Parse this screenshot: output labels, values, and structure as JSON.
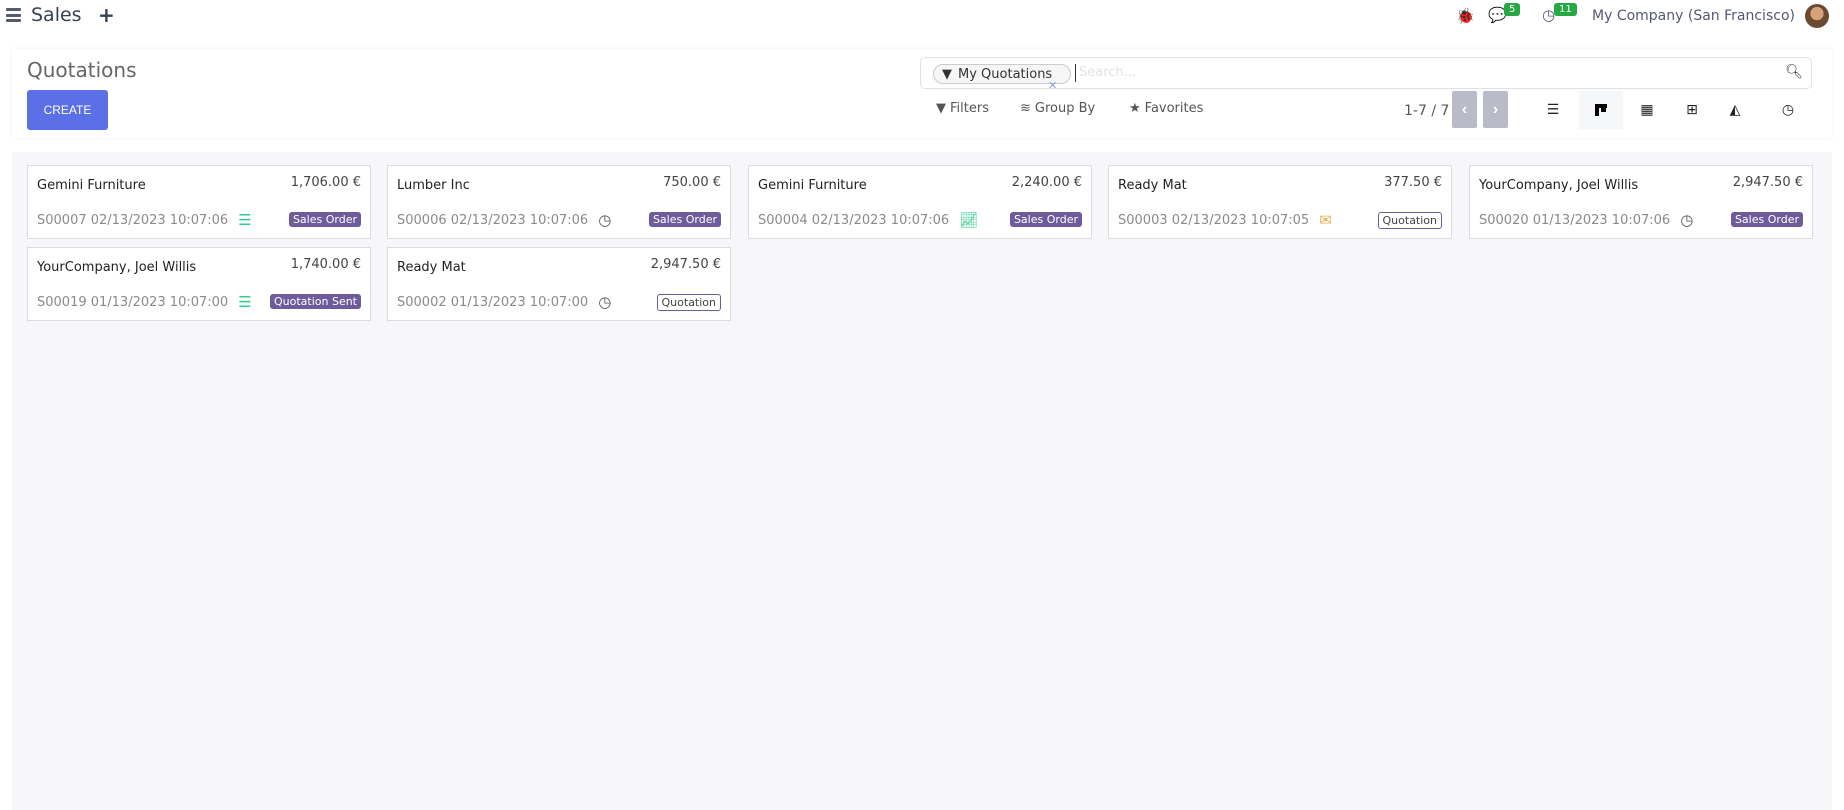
{
  "topbar": {
    "app_name": "Sales",
    "plus": "+",
    "chat_count": "5",
    "activity_count": "11",
    "company": "My Company (San Francisco)"
  },
  "control_panel": {
    "title": "Quotations",
    "create_label": "CREATE",
    "search": {
      "facet": "My Quotations",
      "placeholder": "Search..."
    },
    "filters_label": "Filters",
    "groupby_label": "Group By",
    "favorites_label": "Favorites",
    "pager": "1-7 / 7",
    "views": [
      "list",
      "kanban",
      "calendar",
      "pivot",
      "graph",
      "activity"
    ],
    "active_view": "kanban"
  },
  "colors": {
    "primary": "#5b6fe6",
    "tag": "#6d5b9c",
    "badge": "#28a745",
    "activity_green": "#2ecc8e",
    "activity_orange": "#f0ad4e"
  },
  "cards": [
    {
      "name": "Gemini Furniture",
      "amount": "1,706.00 €",
      "ref": "S00007 02/13/2023 10:07:06",
      "activity": "tasks-icon",
      "status": "Sales Order",
      "style": "solid"
    },
    {
      "name": "Lumber Inc",
      "amount": "750.00 €",
      "ref": "S00006 02/13/2023 10:07:06",
      "activity": "clock-icon",
      "status": "Sales Order",
      "style": "solid"
    },
    {
      "name": "Gemini Furniture",
      "amount": "2,240.00 €",
      "ref": "S00004 02/13/2023 10:07:06",
      "activity": "chart-line-icon",
      "status": "Sales Order",
      "style": "solid"
    },
    {
      "name": "Ready Mat",
      "amount": "377.50 €",
      "ref": "S00003 02/13/2023 10:07:05",
      "activity": "envelope-icon",
      "status": "Quotation",
      "style": "outline"
    },
    {
      "name": "YourCompany, Joel Willis",
      "amount": "2,947.50 €",
      "ref": "S00020 01/13/2023 10:07:06",
      "activity": "clock-icon",
      "status": "Sales Order",
      "style": "solid"
    },
    {
      "name": "YourCompany, Joel Willis",
      "amount": "1,740.00 €",
      "ref": "S00019 01/13/2023 10:07:00",
      "activity": "tasks-icon",
      "status": "Quotation Sent",
      "style": "solid"
    },
    {
      "name": "Ready Mat",
      "amount": "2,947.50 €",
      "ref": "S00002 01/13/2023 10:07:00",
      "activity": "clock-icon",
      "status": "Quotation",
      "style": "outline"
    }
  ]
}
